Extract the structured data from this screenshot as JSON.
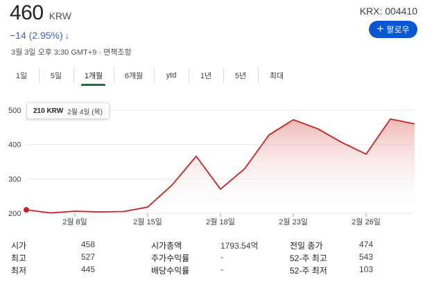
{
  "quote": {
    "price": "460",
    "currency": "KRW",
    "ticker": "KRX: 004410",
    "change": "−14 (2.95%)",
    "change_arrow": "↓",
    "timestamp": "3월 3일 오후 3:30 GMT+9 · 면책조항",
    "follow_label": "팔로우"
  },
  "tabs": [
    {
      "label": "1일"
    },
    {
      "label": "5일"
    },
    {
      "label": "1개월",
      "active": true
    },
    {
      "label": "6개월"
    },
    {
      "label": "ytd"
    },
    {
      "label": "1년"
    },
    {
      "label": "5년"
    },
    {
      "label": "최대"
    }
  ],
  "tooltip": {
    "value": "210 KRW",
    "date": "2월 4일 (목)"
  },
  "colors": {
    "line": "#c5221f",
    "fill_top": "#e8a19c",
    "accent_blue": "#0b57d0",
    "change": "#3c63c0",
    "active_tab": "#137333"
  },
  "chart_data": {
    "type": "area",
    "x": [
      "2월 4일",
      "2월 5일",
      "2월 8일",
      "2월 9일",
      "2월 10일",
      "2월 15일",
      "2월 16일",
      "2월 17일",
      "2월 18일",
      "2월 19일",
      "2월 22일",
      "2월 23일",
      "2월 24일",
      "2월 25일",
      "2월 26일",
      "3월 2일",
      "3월 3일"
    ],
    "values": [
      210,
      201,
      206,
      204,
      205,
      218,
      282,
      366,
      270,
      330,
      428,
      472,
      446,
      406,
      372,
      474,
      460
    ],
    "x_ticks": [
      "2월 8일",
      "2월 15일",
      "2월 18일",
      "2월 23일",
      "2월 26일"
    ],
    "y_ticks": [
      200,
      300,
      400,
      500
    ],
    "ylim": [
      200,
      500
    ],
    "grid": true,
    "title": "",
    "xlabel": "",
    "ylabel": ""
  },
  "stats": [
    [
      {
        "label": "시가",
        "value": "458"
      },
      {
        "label": "최고",
        "value": "527"
      },
      {
        "label": "최저",
        "value": "445"
      }
    ],
    [
      {
        "label": "시가총액",
        "value": "1793.54억"
      },
      {
        "label": "주가수익률",
        "value": "-"
      },
      {
        "label": "배당수익률",
        "value": "-"
      }
    ],
    [
      {
        "label": "전일 종가",
        "value": "474"
      },
      {
        "label": "52-주 최고",
        "value": "543"
      },
      {
        "label": "52-주 최저",
        "value": "103"
      }
    ]
  ]
}
